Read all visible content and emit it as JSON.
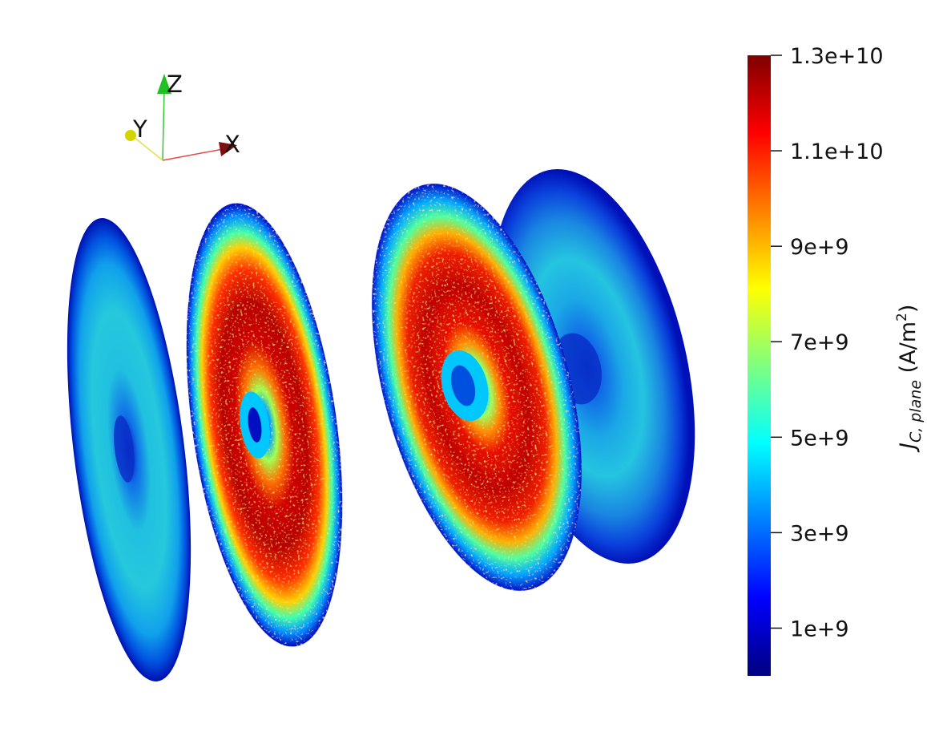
{
  "orientation_axes": {
    "labels": [
      "X",
      "Y",
      "Z"
    ],
    "colors": {
      "X": "#e34a4a",
      "Y": "#e6e04a",
      "Z": "#34c934"
    },
    "arrow_colors": {
      "X": "#7a1010",
      "Y": "#d4d400",
      "Z": "#20c020"
    }
  },
  "colorbar": {
    "title_main": "J",
    "title_sub": "C, plane",
    "title_unit": " (A/m",
    "title_unit_sup": "2",
    "title_unit_close": ")",
    "min": 0,
    "max": 13000000000,
    "tick_values": [
      1000000000,
      3000000000,
      5000000000,
      7000000000,
      9000000000,
      11000000000,
      13000000000
    ],
    "tick_labels": [
      "1e+9",
      "3e+9",
      "5e+9",
      "7e+9",
      "9e+9",
      "1.1e+10",
      "1.3e+10"
    ],
    "colormap": "jet"
  },
  "slices": [
    {
      "name": "slice-1",
      "peak_fraction": 0.48,
      "center_fraction": 0.12
    },
    {
      "name": "slice-2",
      "peak_fraction": 1.0,
      "center_fraction": 0.05
    },
    {
      "name": "slice-3",
      "peak_fraction": 1.0,
      "center_fraction": 0.35
    },
    {
      "name": "slice-4",
      "peak_fraction": 0.42,
      "center_fraction": 0.12
    }
  ]
}
